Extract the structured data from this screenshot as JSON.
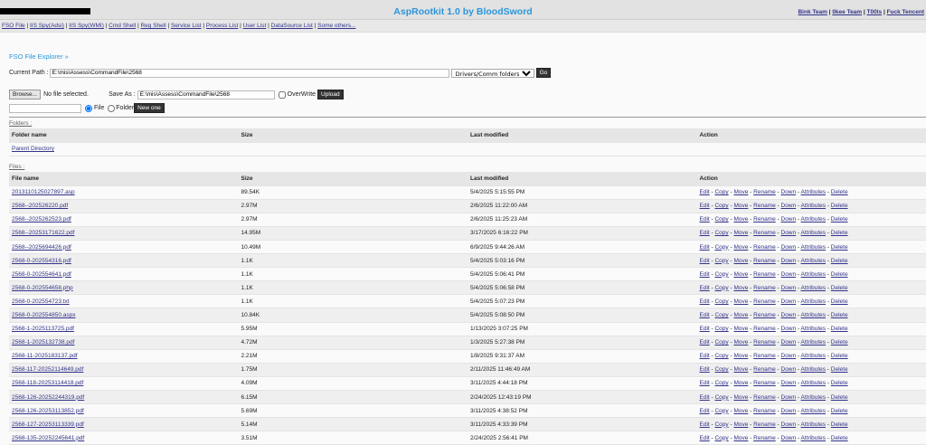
{
  "header": {
    "title": "AspRootkit 1.0 by BloodSword",
    "links": [
      "Bink Team",
      "0kee Team",
      "T00ls",
      "Fuck Tencent"
    ]
  },
  "nav": [
    "FSO File",
    "IIS Spy(Adsi)",
    "IIS Spy(WMI)",
    "Cmd Shell",
    "Reg Shell",
    "Service List",
    "Process List",
    "User List",
    "DataSource List",
    "Some others..."
  ],
  "fso": {
    "title": "FSO File Explorer »",
    "current_path_label": "Current Path :",
    "current_path": "E:\\mis\\Assess\\CommandFile\\2568",
    "drive_select": "Drivers/Comm folders",
    "go": "Go",
    "browse": "Browse...",
    "no_file": "No file selected.",
    "save_as_label": "Save As :",
    "save_as": "E:\\mis\\Assess\\CommandFile\\2568",
    "overwrite": "OverWrite",
    "upload": "Upload",
    "new_name": "",
    "file_radio": "File",
    "folder_radio": "Folder",
    "new_one": "New one"
  },
  "folders": {
    "label": "Folders :",
    "headers": [
      "Folder name",
      "Size",
      "Last modified",
      "Action"
    ],
    "parent": "Parent Directory"
  },
  "files": {
    "label": "Files :",
    "headers": [
      "File name",
      "Size",
      "Last modified",
      "Action"
    ],
    "actions": [
      "Edit",
      "Copy",
      "Move",
      "Rename",
      "Down",
      "Attributes",
      "Delete"
    ],
    "rows": [
      [
        "2013110125027897.asp",
        "89.54K",
        "5/4/2025 5:15:55 PM"
      ],
      [
        "2568--202526220.pdf",
        "2.97M",
        "2/6/2025 11:22:00 AM"
      ],
      [
        "2568--2025262523.pdf",
        "2.97M",
        "2/6/2025 11:25:23 AM"
      ],
      [
        "2568--20253171622.pdf",
        "14.95M",
        "3/17/2025 6:16:22 PM"
      ],
      [
        "2568--2025694426.pdf",
        "10.49M",
        "6/9/2025 9:44:26 AM"
      ],
      [
        "2568-0-202554316.pdf",
        "1.1K",
        "5/4/2025 5:03:16 PM"
      ],
      [
        "2568-0-202554641.pdf",
        "1.1K",
        "5/4/2025 5:06:41 PM"
      ],
      [
        "2568-0-202554658.php",
        "1.1K",
        "5/4/2025 5:06:58 PM"
      ],
      [
        "2568-0-202554723.txt",
        "1.1K",
        "5/4/2025 5:07:23 PM"
      ],
      [
        "2568-0-202554850.aspx",
        "10.84K",
        "5/4/2025 5:08:50 PM"
      ],
      [
        "2568-1-2025113725.pdf",
        "5.95M",
        "1/13/2025 3:07:25 PM"
      ],
      [
        "2568-1-2025132738.pdf",
        "4.72M",
        "1/3/2025 5:27:38 PM"
      ],
      [
        "2568-11-2025183137.pdf",
        "2.21M",
        "1/8/2025 9:31:37 AM"
      ],
      [
        "2568-117-20252114649.pdf",
        "1.75M",
        "2/11/2025 11:46:49 AM"
      ],
      [
        "2568-118-20253114418.pdf",
        "4.09M",
        "3/11/2025 4:44:18 PM"
      ],
      [
        "2568-126-20252244319.pdf",
        "6.15M",
        "2/24/2025 12:43:19 PM"
      ],
      [
        "2568-126-20253113852.pdf",
        "5.69M",
        "3/11/2025 4:38:52 PM"
      ],
      [
        "2568-127-20253113339.pdf",
        "5.14M",
        "3/11/2025 4:33:39 PM"
      ],
      [
        "2568-135-20252245641.pdf",
        "3.51M",
        "2/24/2025 2:56:41 PM"
      ]
    ]
  }
}
